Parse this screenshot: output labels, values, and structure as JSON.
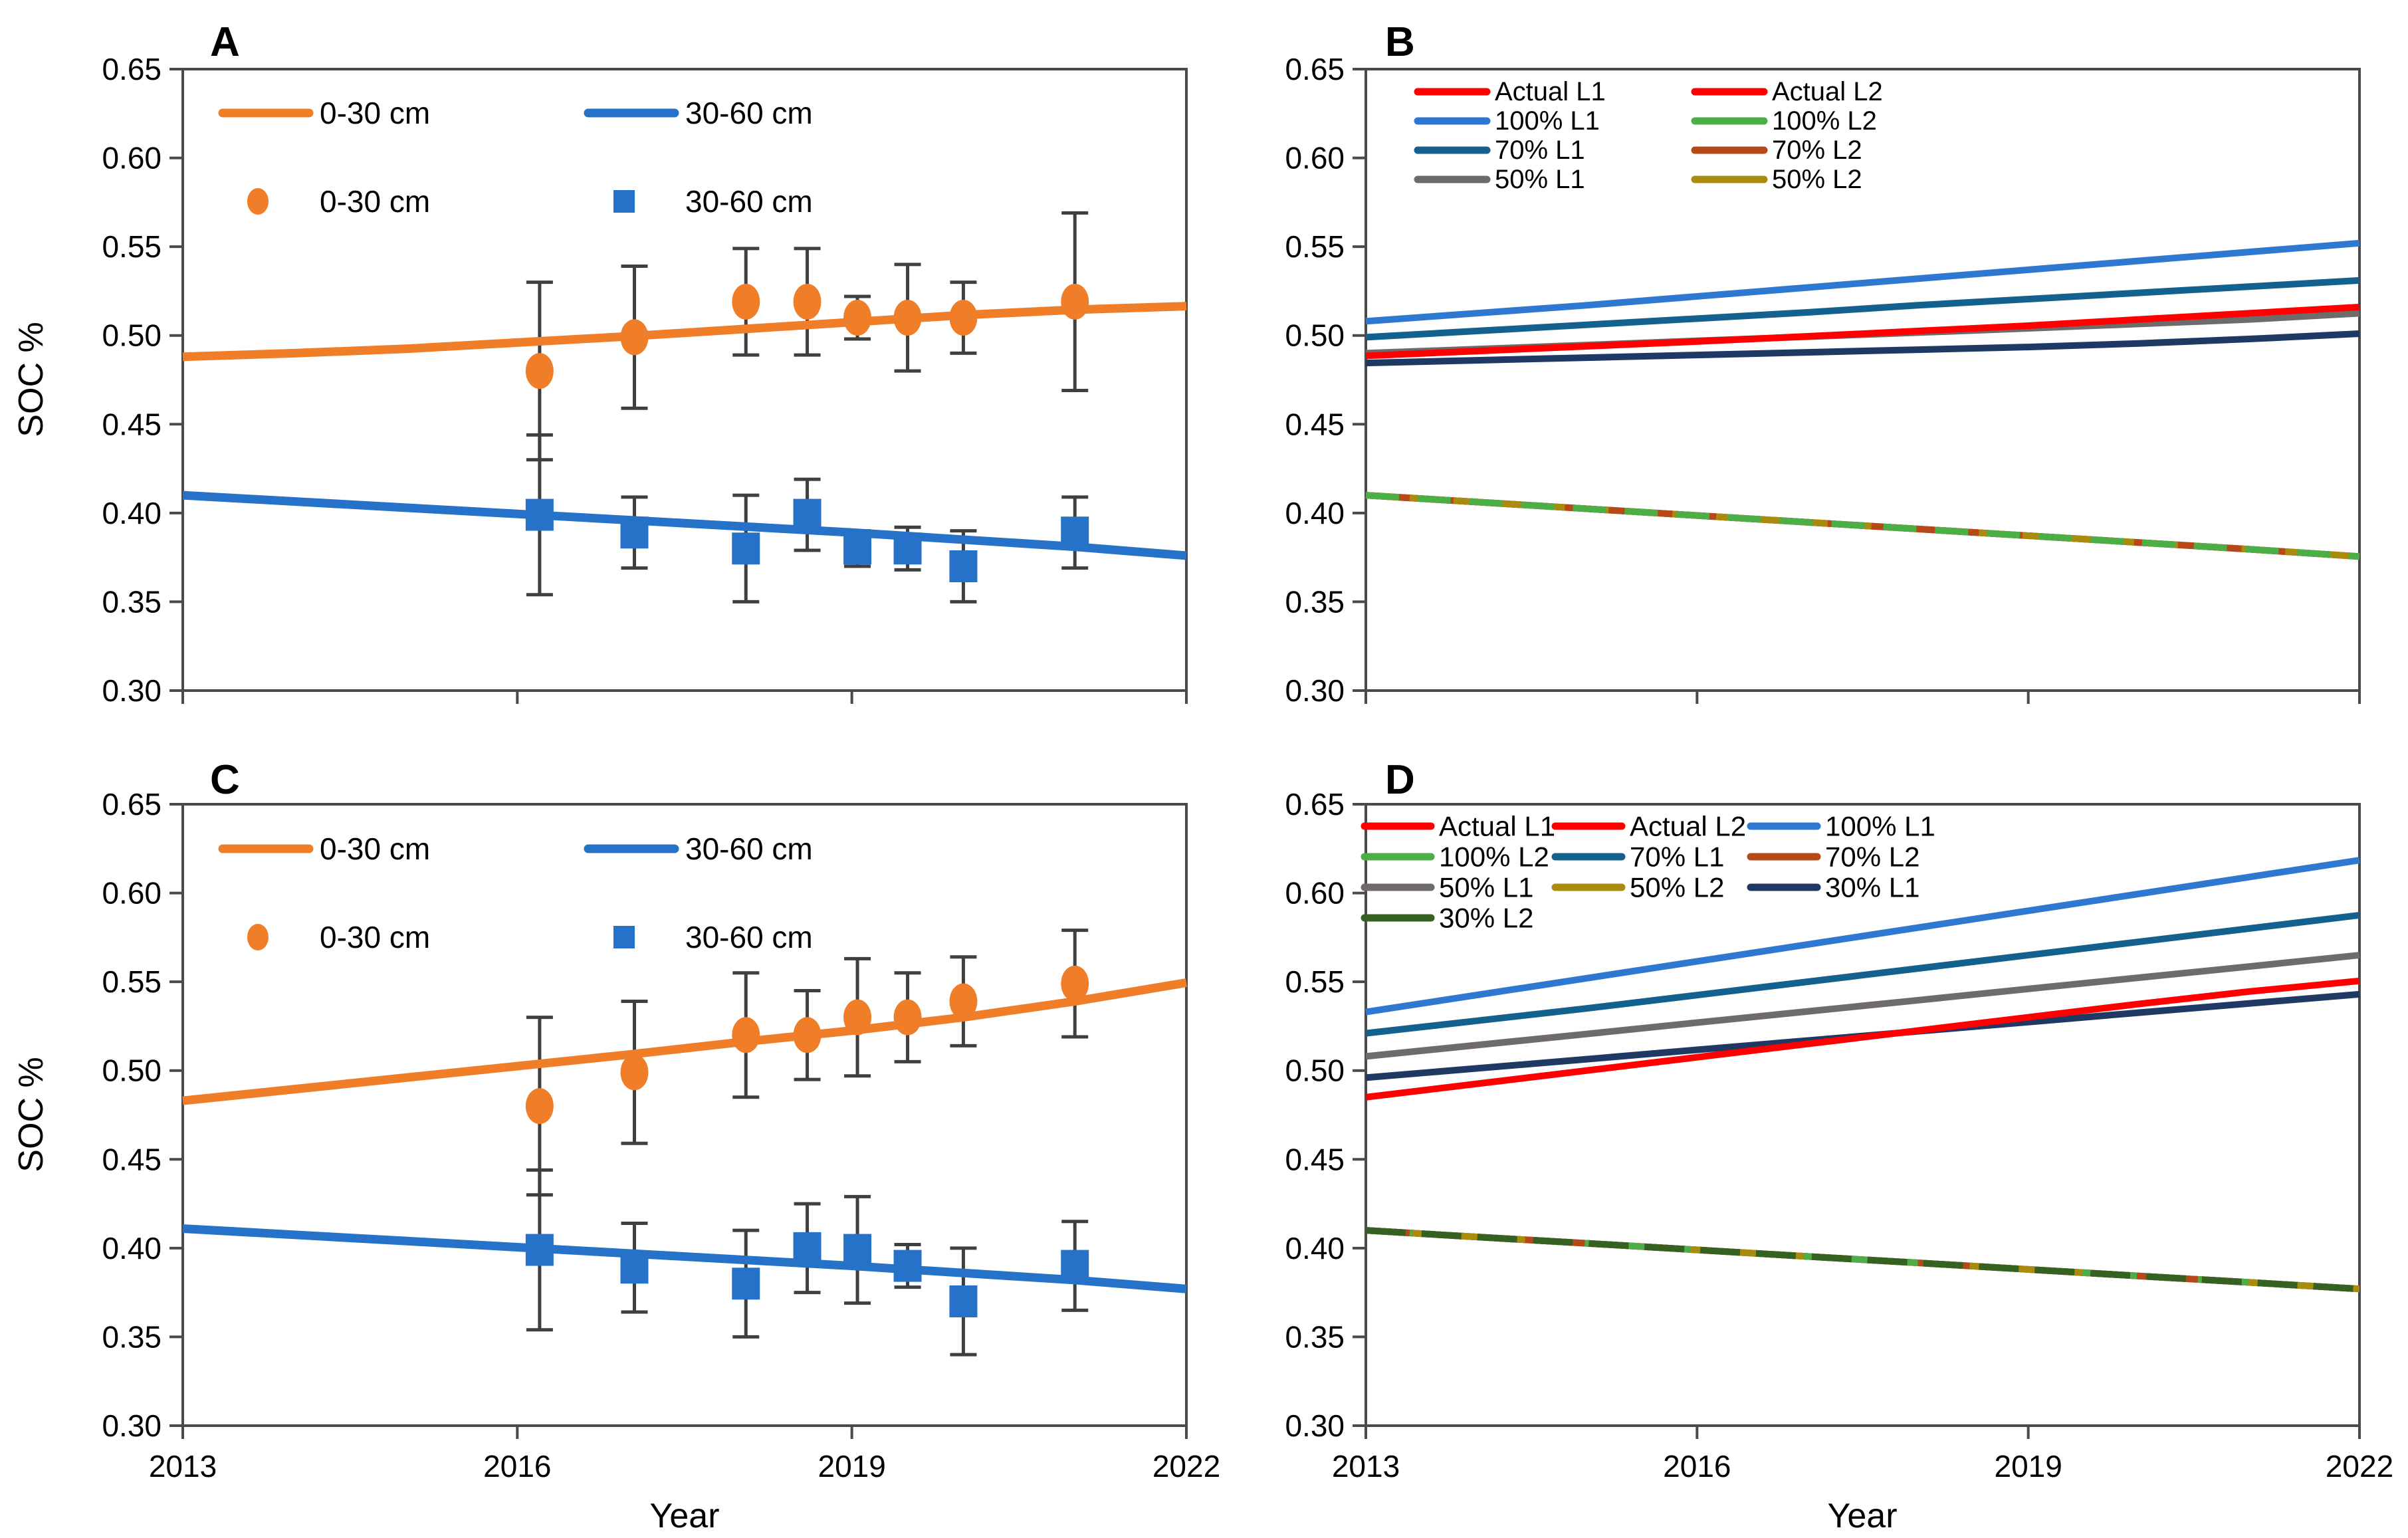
{
  "chart_data": {
    "type": "line",
    "title": "",
    "xlabel": "Year",
    "ylabel": "SOC %",
    "xlim": [
      2013,
      2022
    ],
    "ylim": [
      0.3,
      0.65
    ],
    "x_ticks": [
      2013,
      2016,
      2019,
      2022
    ],
    "x_tick_labels": [
      "2013",
      "2016",
      "2019",
      "2022"
    ],
    "y_ticks": [
      0.3,
      0.35,
      0.4,
      0.45,
      0.5,
      0.55,
      0.6,
      0.65
    ],
    "y_tick_labels": [
      "0.30",
      "0.35",
      "0.40",
      "0.45",
      "0.50",
      "0.55",
      "0.60",
      "0.65"
    ],
    "grid": false,
    "legend_position": "inside top-left",
    "line_x": [
      2013,
      2014,
      2015,
      2016,
      2017,
      2018,
      2019,
      2020,
      2021,
      2022
    ],
    "panels": [
      {
        "id": "A",
        "letter": "A",
        "y_axis_label": "SOC %",
        "x_axis_label": null,
        "show_x_tick_labels": false,
        "legend": {
          "items": [
            {
              "swatch": "line",
              "color": "#F07D28",
              "label": "0-30 cm"
            },
            {
              "swatch": "line",
              "color": "#2772C9",
              "label": "30-60 cm"
            },
            {
              "swatch": "circle",
              "color": "#F07D28",
              "label": "0-30 cm"
            },
            {
              "swatch": "square",
              "color": "#2772C9",
              "label": "30-60 cm"
            }
          ]
        },
        "lines": [
          {
            "name": "0-30 cm simulated",
            "color": "#F07D28",
            "y": [
              0.488,
              0.49,
              0.4925,
              0.496,
              0.4995,
              0.5035,
              0.5075,
              0.5115,
              0.5145,
              0.5165
            ]
          },
          {
            "name": "30-60 cm simulated",
            "color": "#2772C9",
            "y": [
              0.41,
              0.4065,
              0.403,
              0.3995,
              0.396,
              0.3925,
              0.389,
              0.385,
              0.381,
              0.376
            ]
          }
        ],
        "scatter": [
          {
            "name": "0-30 cm measured",
            "marker": "circle",
            "color": "#F07D28",
            "x": [
              2016.2,
              2017.05,
              2018.05,
              2018.6,
              2019.05,
              2019.5,
              2020.0,
              2021.0
            ],
            "y": [
              0.48,
              0.499,
              0.519,
              0.519,
              0.51,
              0.51,
              0.51,
              0.519
            ],
            "yerr": [
              0.05,
              0.04,
              0.03,
              0.03,
              0.012,
              0.03,
              0.02,
              0.05
            ]
          },
          {
            "name": "30-60 cm measured",
            "marker": "square",
            "color": "#2772C9",
            "x": [
              2016.2,
              2017.05,
              2018.05,
              2018.6,
              2019.05,
              2019.5,
              2020.0,
              2021.0
            ],
            "y": [
              0.399,
              0.389,
              0.38,
              0.399,
              0.38,
              0.38,
              0.37,
              0.389
            ],
            "yerr": [
              0.045,
              0.02,
              0.03,
              0.02,
              0.01,
              0.012,
              0.02,
              0.02
            ]
          }
        ]
      },
      {
        "id": "B",
        "letter": "B",
        "y_axis_label": null,
        "x_axis_label": null,
        "show_x_tick_labels": false,
        "legend": {
          "items": [
            {
              "swatch": "line",
              "color": "#FE0000",
              "label": "Actual L1"
            },
            {
              "swatch": "line",
              "color": "#FE0000",
              "label": "Actual L2"
            },
            {
              "swatch": "line",
              "color": "#2E78D2",
              "label": "100% L1"
            },
            {
              "swatch": "line",
              "color": "#4CAE46",
              "label": "100% L2"
            },
            {
              "swatch": "line",
              "color": "#15618E",
              "label": "70% L1"
            },
            {
              "swatch": "line",
              "color": "#B54A18",
              "label": "70% L2"
            },
            {
              "swatch": "line",
              "color": "#6F6B6B",
              "label": "50% L1"
            },
            {
              "swatch": "line",
              "color": "#A98C0E",
              "label": "50% L2"
            }
          ]
        },
        "lines": [
          {
            "name": "Actual L2",
            "color": "#FE0000",
            "y": [
              0.41,
              0.4062,
              0.4024,
              0.3986,
              0.3948,
              0.391,
              0.3872,
              0.3834,
              0.3796,
              0.3755
            ]
          },
          {
            "name": "70% L2",
            "color": "#B54A18",
            "y": [
              0.41,
              0.4062,
              0.4024,
              0.3986,
              0.3948,
              0.391,
              0.3872,
              0.3834,
              0.3796,
              0.3755
            ]
          },
          {
            "name": "50% L2",
            "color": "#A98C0E",
            "dash": "36 30",
            "y": [
              0.41,
              0.4062,
              0.4024,
              0.3986,
              0.3948,
              0.391,
              0.3872,
              0.3834,
              0.3796,
              0.3755
            ]
          },
          {
            "name": "100% L2",
            "color": "#4CAE46",
            "dash": "50 28",
            "y": [
              0.41,
              0.4062,
              0.4024,
              0.3986,
              0.3948,
              0.391,
              0.3872,
              0.3834,
              0.3796,
              0.3755
            ]
          },
          {
            "name": "unlabeled (navy)",
            "color": "#1F3864",
            "y": [
              0.4845,
              0.486,
              0.4875,
              0.489,
              0.4905,
              0.492,
              0.4935,
              0.4955,
              0.498,
              0.501
            ]
          },
          {
            "name": "50% L1",
            "color": "#6F6B6B",
            "y": [
              0.49,
              0.4923,
              0.4946,
              0.497,
              0.4993,
              0.5016,
              0.504,
              0.5065,
              0.509,
              0.5125
            ]
          },
          {
            "name": "Actual L1",
            "color": "#FE0000",
            "y": [
              0.4885,
              0.4912,
              0.4939,
              0.4966,
              0.4995,
              0.5025,
              0.5055,
              0.509,
              0.5125,
              0.516
            ]
          },
          {
            "name": "70% L1",
            "color": "#15618E",
            "y": [
              0.499,
              0.5025,
              0.506,
              0.5095,
              0.513,
              0.517,
              0.5205,
              0.524,
              0.5275,
              0.531
            ]
          },
          {
            "name": "100% L1",
            "color": "#2E78D2",
            "y": [
              0.508,
              0.5125,
              0.517,
              0.522,
              0.527,
              0.532,
              0.537,
              0.542,
              0.547,
              0.552
            ]
          }
        ],
        "scatter": []
      },
      {
        "id": "C",
        "letter": "C",
        "y_axis_label": "SOC %",
        "x_axis_label": "Year",
        "show_x_tick_labels": true,
        "legend": {
          "items": [
            {
              "swatch": "line",
              "color": "#F07D28",
              "label": "0-30 cm"
            },
            {
              "swatch": "line",
              "color": "#2772C9",
              "label": "30-60 cm"
            },
            {
              "swatch": "circle",
              "color": "#F07D28",
              "label": "0-30 cm"
            },
            {
              "swatch": "square",
              "color": "#2772C9",
              "label": "30-60 cm"
            }
          ]
        },
        "lines": [
          {
            "name": "0-30 cm simulated",
            "color": "#F07D28",
            "y": [
              0.483,
              0.4895,
              0.496,
              0.5025,
              0.509,
              0.516,
              0.5225,
              0.53,
              0.539,
              0.5495
            ]
          },
          {
            "name": "30-60 cm simulated",
            "color": "#2772C9",
            "y": [
              0.411,
              0.4075,
              0.404,
              0.4005,
              0.397,
              0.3935,
              0.39,
              0.386,
              0.382,
              0.377
            ]
          }
        ],
        "scatter": [
          {
            "name": "0-30 cm measured",
            "marker": "circle",
            "color": "#F07D28",
            "x": [
              2016.2,
              2017.05,
              2018.05,
              2018.6,
              2019.05,
              2019.5,
              2020.0,
              2021.0
            ],
            "y": [
              0.48,
              0.499,
              0.52,
              0.52,
              0.53,
              0.53,
              0.539,
              0.549
            ],
            "yerr": [
              0.05,
              0.04,
              0.035,
              0.025,
              0.033,
              0.025,
              0.025,
              0.03
            ]
          },
          {
            "name": "30-60 cm measured",
            "marker": "square",
            "color": "#2772C9",
            "x": [
              2016.2,
              2017.05,
              2018.05,
              2018.6,
              2019.05,
              2019.5,
              2020.0,
              2021.0
            ],
            "y": [
              0.399,
              0.389,
              0.38,
              0.4,
              0.399,
              0.39,
              0.37,
              0.39
            ],
            "yerr": [
              0.045,
              0.025,
              0.03,
              0.025,
              0.03,
              0.012,
              0.03,
              0.025
            ]
          }
        ]
      },
      {
        "id": "D",
        "letter": "D",
        "y_axis_label": null,
        "x_axis_label": "Year",
        "show_x_tick_labels": true,
        "legend": {
          "items": [
            {
              "swatch": "line",
              "color": "#FE0000",
              "label": "Actual L1"
            },
            {
              "swatch": "line",
              "color": "#FE0000",
              "label": "Actual L2"
            },
            {
              "swatch": "line",
              "color": "#2E78D2",
              "label": "100% L1"
            },
            {
              "swatch": "line",
              "color": "#4CAE46",
              "label": "100% L2"
            },
            {
              "swatch": "line",
              "color": "#15618E",
              "label": "70% L1"
            },
            {
              "swatch": "line",
              "color": "#B54A18",
              "label": "70% L2"
            },
            {
              "swatch": "line",
              "color": "#6F6B6B",
              "label": "50% L1"
            },
            {
              "swatch": "line",
              "color": "#A98C0E",
              "label": "50% L2"
            },
            {
              "swatch": "line",
              "color": "#1F3864",
              "label": "30% L1"
            },
            {
              "swatch": "line",
              "color": "#356122",
              "label": "30% L2"
            }
          ]
        },
        "lines": [
          {
            "name": "Actual L2",
            "color": "#FE0000",
            "y": [
              0.41,
              0.4063,
              0.4027,
              0.399,
              0.3953,
              0.3917,
              0.388,
              0.3843,
              0.3807,
              0.377
            ]
          },
          {
            "name": "70% L2",
            "color": "#B54A18",
            "y": [
              0.41,
              0.4063,
              0.4027,
              0.399,
              0.3953,
              0.3917,
              0.388,
              0.3843,
              0.3807,
              0.377
            ]
          },
          {
            "name": "100% L2",
            "color": "#4CAE46",
            "dash": "40 26",
            "y": [
              0.41,
              0.4063,
              0.4027,
              0.399,
              0.3953,
              0.3917,
              0.388,
              0.3843,
              0.3807,
              0.377
            ]
          },
          {
            "name": "50% L2",
            "color": "#A98C0E",
            "dash": "30 40",
            "y": [
              0.41,
              0.4063,
              0.4027,
              0.399,
              0.3953,
              0.3917,
              0.388,
              0.3843,
              0.3807,
              0.377
            ]
          },
          {
            "name": "30% L2",
            "color": "#356122",
            "dash": "60 24",
            "y": [
              0.41,
              0.4063,
              0.4027,
              0.399,
              0.3953,
              0.3917,
              0.388,
              0.3843,
              0.3807,
              0.377
            ]
          },
          {
            "name": "30% L1",
            "color": "#1F3864",
            "y": [
              0.496,
              0.5012,
              0.5064,
              0.5117,
              0.5169,
              0.5221,
              0.5273,
              0.5326,
              0.5378,
              0.543
            ]
          },
          {
            "name": "Actual L1",
            "color": "#FE0000",
            "y": [
              0.485,
              0.4925,
              0.5,
              0.5075,
              0.515,
              0.5225,
              0.53,
              0.5375,
              0.5445,
              0.5505
            ]
          },
          {
            "name": "50% L1",
            "color": "#6F6B6B",
            "y": [
              0.508,
              0.5143,
              0.5206,
              0.527,
              0.5333,
              0.5396,
              0.546,
              0.5523,
              0.5586,
              0.565
            ]
          },
          {
            "name": "70% L1",
            "color": "#15618E",
            "y": [
              0.521,
              0.528,
              0.535,
              0.5425,
              0.55,
              0.5575,
              0.565,
              0.5725,
              0.58,
              0.5875
            ]
          },
          {
            "name": "100% L1",
            "color": "#2E78D2",
            "y": [
              0.533,
              0.5425,
              0.552,
              0.5615,
              0.571,
              0.5805,
              0.59,
              0.5995,
              0.609,
              0.6185
            ]
          }
        ],
        "scatter": []
      }
    ],
    "colors": {
      "orange_0_30": "#F07D28",
      "blue_30_60": "#2772C9",
      "actual_red": "#FE0000",
      "p100_L1_blue": "#2E78D2",
      "p100_L2_green": "#4CAE46",
      "p70_L1_teal": "#15618E",
      "p70_L2_rust": "#B54A18",
      "p50_L1_gray": "#6F6B6B",
      "p50_L2_olive": "#A98C0E",
      "p30_L1_navy": "#1F3864",
      "p30_L2_darkgreen": "#356122",
      "axis": "#4A4A4A",
      "error_bar": "#3F3F3F"
    }
  }
}
